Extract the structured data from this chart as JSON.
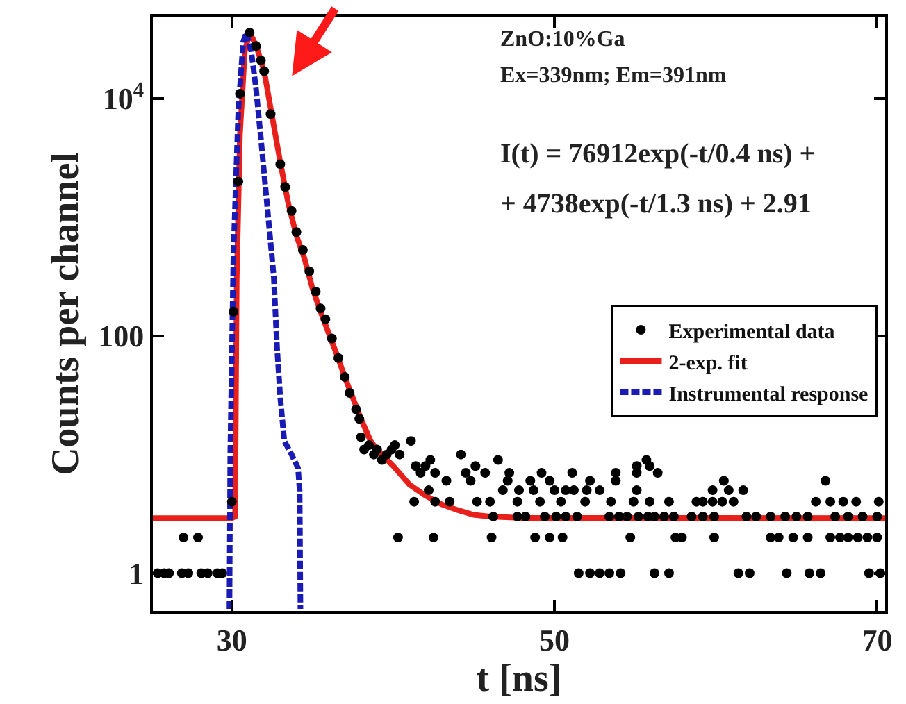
{
  "chart_data": {
    "type": "scatter",
    "xlabel": "t [ns]",
    "ylabel": "Counts per channel",
    "xlim": [
      25.1,
      70.5
    ],
    "xticks": [
      30,
      50,
      70
    ],
    "ylim": [
      0.48,
      49000
    ],
    "yticks": [
      1,
      100,
      {
        "value": 10000,
        "label": "10$^{4}$"
      }
    ],
    "log": "y",
    "legend": "right",
    "annotations": [
      "ZnO:10%Ga",
      "Ex=339nm; Em=391nm",
      "I(t) = 76912exp(-t/0.4 ns) +",
      "+ 4738exp(-t/1.3 ns) + 2.91"
    ],
    "series": [
      {
        "name": "Experimental data",
        "type": "scatter",
        "marker": "circle",
        "color": "#000000",
        "x": [
          25.4,
          25.8,
          26.1,
          26.9,
          27.3,
          28.1,
          28.5,
          29.1,
          29.4,
          27.0,
          27.9,
          30.0,
          30.1,
          30.4,
          30.5,
          31.1,
          31.5,
          31.8,
          32.0,
          32.4,
          33.0,
          33.3,
          33.7,
          34.0,
          34.4,
          34.8,
          35.2,
          35.5,
          35.8,
          36.2,
          36.6,
          37.0,
          37.3,
          37.7,
          37.9,
          38.0,
          38.2,
          38.5,
          38.8,
          39.0,
          39.3,
          39.6,
          39.9,
          40.1,
          40.4,
          41.1,
          41.4,
          41.7,
          42.0,
          42.3,
          42.6,
          42.2,
          41.3,
          42.6,
          40.3,
          43.3,
          43.5,
          42.5,
          51.5,
          52.2,
          52.8,
          53.4,
          54.1,
          56.2,
          57.1,
          61.4,
          62.1,
          64.4,
          65.8,
          66.5,
          69.5,
          70.2,
          46.1,
          48.8,
          49.7,
          50.5,
          54.7,
          57.5,
          57.9,
          59.9,
          63.4,
          63.9,
          64.8,
          65.7,
          67.1,
          67.7,
          68.2,
          68.8,
          69.4,
          70.0,
          46.2,
          47.7,
          48.2,
          49.4,
          50.1,
          50.7,
          51.4,
          53.4,
          54.0,
          54.5,
          55.2,
          55.8,
          56.2,
          56.8,
          57.4,
          58.5,
          59.2,
          59.9,
          61.9,
          62.5,
          63.4,
          64.3,
          65.0,
          65.7,
          67.4,
          68.2,
          69.1,
          70.0,
          45.2,
          46.0,
          47.7,
          49.1,
          50.4,
          51.9,
          53.5,
          54.9,
          55.9,
          57.1,
          58.8,
          59.2,
          59.8,
          60.4,
          61.1,
          66.2,
          67.1,
          67.9,
          68.7,
          70.1,
          46.8,
          47.8,
          48.7,
          50.0,
          50.7,
          51.2,
          52.0,
          52.8,
          55.1,
          59.8,
          60.8,
          61.7,
          44.8,
          47.1,
          48.5,
          49.7,
          52.2,
          53.8,
          60.5,
          66.8,
          44.5,
          45.7,
          47.2,
          49.2,
          51.1,
          53.8,
          55.1,
          56.4,
          45.1,
          55.1,
          55.9,
          46.5,
          55.7,
          44.2
        ],
        "values": [
          1,
          1,
          1,
          1,
          1,
          1,
          1,
          1,
          1,
          2,
          2,
          4,
          160,
          2000,
          11000,
          36000,
          27700,
          21000,
          17000,
          7400,
          2800,
          1800,
          1130,
          750,
          530,
          350,
          236,
          170,
          138,
          95,
          65,
          45,
          33,
          24,
          20,
          14,
          11,
          12,
          10,
          11,
          9,
          10,
          11,
          12,
          10,
          13,
          8,
          7,
          8,
          9,
          7,
          5,
          4,
          4,
          2,
          6,
          4,
          2,
          1,
          1,
          1,
          1,
          1,
          1,
          1,
          1,
          1,
          1,
          1,
          1,
          1,
          1,
          2,
          2,
          2,
          2,
          2,
          2,
          2,
          2,
          2,
          2,
          2,
          2,
          2,
          2,
          2,
          2,
          2,
          2,
          3,
          3,
          3,
          3,
          3,
          3,
          3,
          3,
          3,
          3,
          3,
          3,
          3,
          3,
          3,
          3,
          3,
          3,
          3,
          3,
          3,
          3,
          3,
          3,
          3,
          3,
          3,
          3,
          4,
          4,
          4,
          4,
          4,
          4,
          4,
          4,
          4,
          4,
          4,
          4,
          4,
          4,
          4,
          4,
          4,
          4,
          4,
          4,
          5,
          5,
          5,
          5,
          5,
          5,
          5,
          5,
          5,
          5,
          5,
          5,
          6,
          6,
          6,
          6,
          6,
          6,
          6,
          6,
          7,
          7,
          7,
          7,
          7,
          7,
          7,
          7,
          8,
          8,
          8,
          9,
          9,
          10
        ]
      },
      {
        "name": "2-exp. fit",
        "type": "line",
        "marker": "none",
        "line_style": "solid",
        "color": "#e8201c",
        "x": [
          25.1,
          30.0,
          30.2,
          30.3,
          30.5,
          30.8,
          31.1,
          31.5,
          32.0,
          32.5,
          33.0,
          33.5,
          34.0,
          34.5,
          35.0,
          35.5,
          36.0,
          36.5,
          37.0,
          37.5,
          38.0,
          38.6,
          39.0,
          40.0,
          41.0,
          42.0,
          43.0,
          44.0,
          45.0,
          46.0,
          48.0,
          70.5
        ],
        "values": [
          2.91,
          2.91,
          3,
          300,
          5000,
          25000,
          36000,
          28000,
          17000,
          7000,
          2900,
          1300,
          700,
          450,
          250,
          160,
          105,
          70,
          45,
          30,
          20,
          13,
          11,
          8,
          5.6,
          4.5,
          3.8,
          3.4,
          3.1,
          3.0,
          2.92,
          2.91
        ]
      },
      {
        "name": "Instrumental response",
        "type": "line",
        "marker": "none",
        "line_style": "dashed",
        "color": "#1a1ab4",
        "x": [
          29.85,
          29.9,
          30.1,
          30.4,
          30.7,
          30.9,
          31.2,
          31.5,
          31.8,
          32.2,
          32.6,
          32.8,
          33.0,
          33.25,
          33.7,
          34.1,
          34.2,
          34.25
        ],
        "values": [
          0.5,
          10,
          500,
          8000,
          30000,
          36000,
          25000,
          12000,
          4600,
          1200,
          310,
          80,
          30,
          13,
          10,
          7.7,
          5,
          0.5
        ]
      }
    ]
  }
}
